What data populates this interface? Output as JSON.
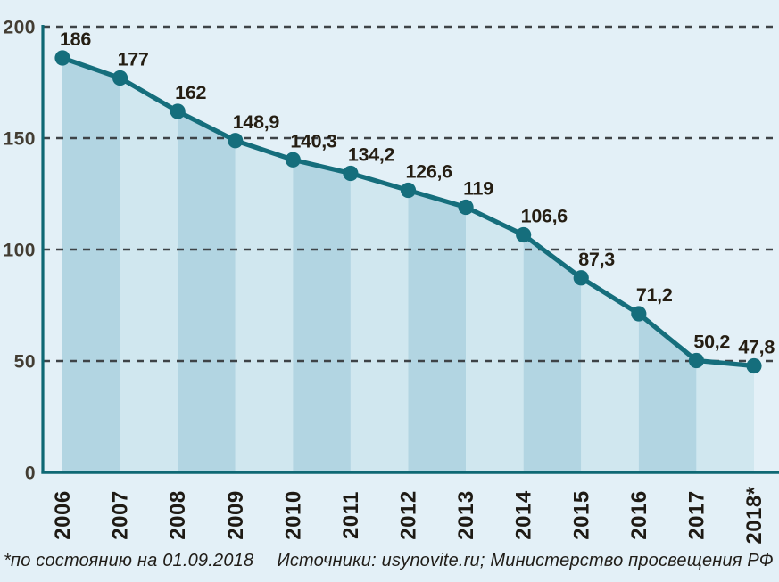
{
  "chart_data": {
    "type": "area",
    "categories": [
      "2006",
      "2007",
      "2008",
      "2009",
      "2010",
      "2011",
      "2012",
      "2013",
      "2014",
      "2015",
      "2016",
      "2017",
      "2018*"
    ],
    "values": [
      186,
      177,
      162,
      148.9,
      140.3,
      134.2,
      126.6,
      119,
      106.6,
      87.3,
      71.2,
      50.2,
      47.8
    ],
    "point_labels": [
      "186",
      "177",
      "162",
      "148,9",
      "140,3",
      "134,2",
      "126,6",
      "119",
      "106,6",
      "87,3",
      "71,2",
      "50,2",
      "47,8"
    ],
    "title": "",
    "xlabel": "",
    "ylabel": "",
    "ylim": [
      0,
      200
    ],
    "yticks": [
      0,
      50,
      100,
      150,
      200
    ],
    "ytick_labels": [
      "0",
      "50",
      "100",
      "150",
      "200"
    ],
    "grid": "horizontal-dashed",
    "legend": "none",
    "colors": {
      "background": "#e3f0f7",
      "band_dark": "#b2d5e2",
      "band_light": "#d0e7ef",
      "line": "#156e7c",
      "dot": "#156e7c",
      "axis": "#0e6874",
      "gridline": "#3e4347",
      "point_label": "#251e13",
      "ytick_label": "#433d33",
      "xtick_label": "#1e1a14",
      "footer_text": "#201d18"
    }
  },
  "footer": {
    "note": "*по состоянию на 01.09.2018",
    "sources": "Источники: usynovite.ru; Министерство просвещения РФ"
  }
}
